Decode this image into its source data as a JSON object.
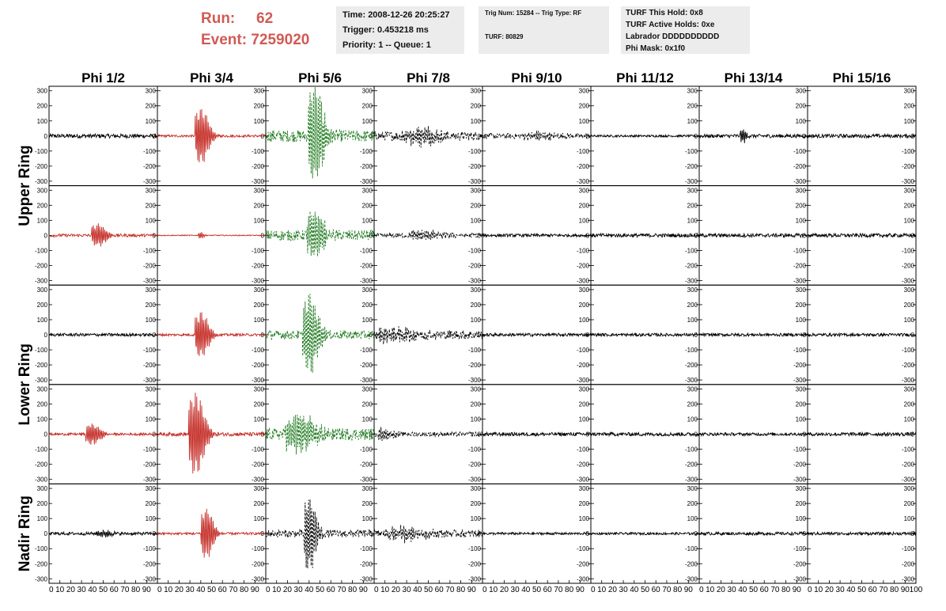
{
  "header": {
    "run_label": "Run:",
    "run_value": "62",
    "event_label": "Event:",
    "event_value": "7259020"
  },
  "info_time": {
    "time": "Time: 2008-12-26 20:25:27",
    "trigger": "Trigger: 0.453218 ms",
    "priority": "Priority: 1 -- Queue: 1"
  },
  "info_trig": {
    "trig": "Trig Num: 15284 -- Trig Type: RF",
    "turf": "TURF: 80829"
  },
  "info_turf": {
    "hold": "TURF This Hold: 0x8",
    "active": "TURF Active Holds: 0xe",
    "labrador": "Labrador DDDDDDDDDD",
    "phimask": "Phi Mask: 0x1f0"
  },
  "colors": {
    "red": "#c42a24",
    "green": "#1f7a1f",
    "black": "#000000",
    "header": "#d05a56"
  },
  "chart_data": {
    "type": "line",
    "columns": [
      "Phi 1/2",
      "Phi 3/4",
      "Phi 5/6",
      "Phi 7/8",
      "Phi 9/10",
      "Phi 11/12",
      "Phi 13/14",
      "Phi 15/16"
    ],
    "ring_labels": [
      {
        "text": "Upper Ring",
        "rows": [
          0,
          1
        ]
      },
      {
        "text": "Lower Ring",
        "rows": [
          2,
          3
        ]
      },
      {
        "text": "Nadir Ring",
        "rows": [
          4
        ]
      }
    ],
    "xlim": [
      0,
      100
    ],
    "ylim": [
      -330,
      330
    ],
    "yticks": [
      -300,
      -200,
      -100,
      0,
      100,
      200,
      300
    ],
    "xticks": [
      0,
      10,
      20,
      30,
      40,
      50,
      60,
      70,
      80,
      90,
      100
    ],
    "grid": false,
    "panels": [
      [
        {
          "color": "black",
          "dashed": false,
          "noise": 14,
          "peak_x": 0,
          "peak_amp": 0,
          "width": 0
        },
        {
          "color": "red",
          "dashed": false,
          "noise": 8,
          "peak_x": 40,
          "peak_amp": 190,
          "width": 9
        },
        {
          "color": "green",
          "dashed": true,
          "noise": 40,
          "peak_x": 45,
          "peak_amp": 320,
          "width": 10
        },
        {
          "color": "black",
          "dashed": true,
          "noise": 30,
          "peak_x": 40,
          "peak_amp": 50,
          "width": 25
        },
        {
          "color": "black",
          "dashed": true,
          "noise": 18,
          "peak_x": 50,
          "peak_amp": 20,
          "width": 20
        },
        {
          "color": "black",
          "dashed": false,
          "noise": 7,
          "peak_x": 0,
          "peak_amp": 0,
          "width": 0
        },
        {
          "color": "black",
          "dashed": false,
          "noise": 12,
          "peak_x": 40,
          "peak_amp": 50,
          "width": 4
        },
        {
          "color": "black",
          "dashed": false,
          "noise": 12,
          "peak_x": 0,
          "peak_amp": 0,
          "width": 0
        }
      ],
      [
        {
          "color": "red",
          "dashed": false,
          "noise": 10,
          "peak_x": 45,
          "peak_amp": 70,
          "width": 10
        },
        {
          "color": "red",
          "dashed": false,
          "noise": 3,
          "peak_x": 40,
          "peak_amp": 20,
          "width": 4
        },
        {
          "color": "green",
          "dashed": true,
          "noise": 35,
          "peak_x": 45,
          "peak_amp": 150,
          "width": 12
        },
        {
          "color": "black",
          "dashed": true,
          "noise": 15,
          "peak_x": 45,
          "peak_amp": 30,
          "width": 20
        },
        {
          "color": "black",
          "dashed": false,
          "noise": 10,
          "peak_x": 0,
          "peak_amp": 0,
          "width": 0
        },
        {
          "color": "black",
          "dashed": false,
          "noise": 12,
          "peak_x": 0,
          "peak_amp": 0,
          "width": 0
        },
        {
          "color": "black",
          "dashed": false,
          "noise": 12,
          "peak_x": 0,
          "peak_amp": 0,
          "width": 0
        },
        {
          "color": "black",
          "dashed": false,
          "noise": 12,
          "peak_x": 0,
          "peak_amp": 0,
          "width": 0
        }
      ],
      [
        {
          "color": "black",
          "dashed": false,
          "noise": 10,
          "peak_x": 0,
          "peak_amp": 0,
          "width": 0
        },
        {
          "color": "red",
          "dashed": false,
          "noise": 8,
          "peak_x": 40,
          "peak_amp": 150,
          "width": 9
        },
        {
          "color": "green",
          "dashed": true,
          "noise": 30,
          "peak_x": 40,
          "peak_amp": 260,
          "width": 10
        },
        {
          "color": "black",
          "dashed": true,
          "noise": 30,
          "peak_x": 20,
          "peak_amp": 40,
          "width": 30
        },
        {
          "color": "black",
          "dashed": false,
          "noise": 10,
          "peak_x": 0,
          "peak_amp": 0,
          "width": 0
        },
        {
          "color": "black",
          "dashed": false,
          "noise": 10,
          "peak_x": 0,
          "peak_amp": 0,
          "width": 0
        },
        {
          "color": "black",
          "dashed": false,
          "noise": 10,
          "peak_x": 0,
          "peak_amp": 0,
          "width": 0
        },
        {
          "color": "black",
          "dashed": false,
          "noise": 10,
          "peak_x": 0,
          "peak_amp": 0,
          "width": 0
        }
      ],
      [
        {
          "color": "red",
          "dashed": false,
          "noise": 8,
          "peak_x": 40,
          "peak_amp": 70,
          "width": 10
        },
        {
          "color": "red",
          "dashed": false,
          "noise": 12,
          "peak_x": 35,
          "peak_amp": 280,
          "width": 10
        },
        {
          "color": "green",
          "dashed": true,
          "noise": 40,
          "peak_x": 30,
          "peak_amp": 120,
          "width": 20
        },
        {
          "color": "black",
          "dashed": true,
          "noise": 15,
          "peak_x": 10,
          "peak_amp": 40,
          "width": 10
        },
        {
          "color": "black",
          "dashed": false,
          "noise": 12,
          "peak_x": 0,
          "peak_amp": 0,
          "width": 0
        },
        {
          "color": "black",
          "dashed": false,
          "noise": 12,
          "peak_x": 0,
          "peak_amp": 0,
          "width": 0
        },
        {
          "color": "black",
          "dashed": false,
          "noise": 10,
          "peak_x": 0,
          "peak_amp": 0,
          "width": 0
        },
        {
          "color": "black",
          "dashed": false,
          "noise": 12,
          "peak_x": 0,
          "peak_amp": 0,
          "width": 0
        }
      ],
      [
        {
          "color": "black",
          "dashed": false,
          "noise": 10,
          "peak_x": 50,
          "peak_amp": 20,
          "width": 10
        },
        {
          "color": "red",
          "dashed": false,
          "noise": 8,
          "peak_x": 45,
          "peak_amp": 170,
          "width": 8
        },
        {
          "color": "black",
          "dashed": true,
          "noise": 25,
          "peak_x": 40,
          "peak_amp": 250,
          "width": 8
        },
        {
          "color": "black",
          "dashed": true,
          "noise": 25,
          "peak_x": 25,
          "peak_amp": 40,
          "width": 25
        },
        {
          "color": "black",
          "dashed": false,
          "noise": 8,
          "peak_x": 0,
          "peak_amp": 0,
          "width": 0
        },
        {
          "color": "black",
          "dashed": false,
          "noise": 8,
          "peak_x": 0,
          "peak_amp": 0,
          "width": 0
        },
        {
          "color": "black",
          "dashed": false,
          "noise": 10,
          "peak_x": 0,
          "peak_amp": 0,
          "width": 0
        },
        {
          "color": "black",
          "dashed": false,
          "noise": 10,
          "peak_x": 0,
          "peak_amp": 0,
          "width": 0
        }
      ]
    ]
  }
}
